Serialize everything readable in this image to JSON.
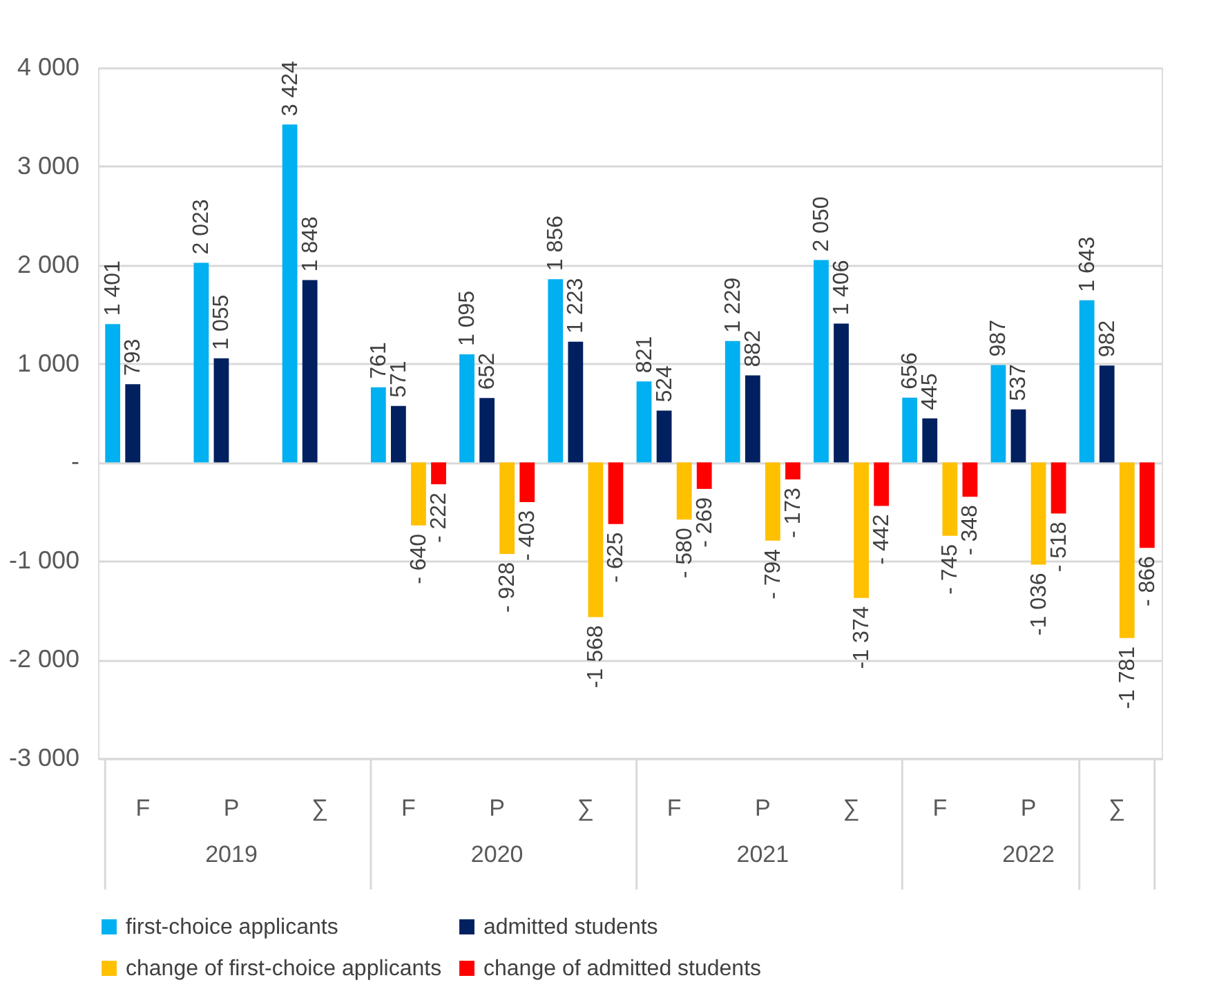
{
  "chart_data": {
    "type": "bar",
    "categories": [
      "F",
      "P",
      "∑",
      "F",
      "P",
      "∑",
      "F",
      "P",
      "∑",
      "F",
      "P",
      "∑"
    ],
    "annotations": [
      "2019",
      "2020",
      "2021",
      "2022"
    ],
    "series": [
      {
        "name": "first-choice applicants",
        "color": "#00b0f0",
        "values": [
          1401,
          2023,
          3424,
          761,
          1095,
          1856,
          821,
          1229,
          2050,
          656,
          987,
          1643
        ],
        "value_labels": [
          "1 401",
          "2 023",
          "3 424",
          "761",
          "1 095",
          "1 856",
          "821",
          "1 229",
          "2 050",
          "656",
          "987",
          "1 643"
        ]
      },
      {
        "name": "admitted students",
        "color": "#002060",
        "values": [
          793,
          1055,
          1848,
          571,
          652,
          1223,
          524,
          882,
          1406,
          445,
          537,
          982
        ],
        "value_labels": [
          "793",
          "1 055",
          "1 848",
          "571",
          "652",
          "1 223",
          "524",
          "882",
          "1 406",
          "445",
          "537",
          "982"
        ]
      },
      {
        "name": "change of first-choice applicants",
        "color": "#ffc000",
        "values": [
          null,
          null,
          null,
          -640,
          -928,
          -1568,
          -580,
          -794,
          -1374,
          -745,
          -1036,
          -1781
        ],
        "value_labels": [
          null,
          null,
          null,
          "- 640",
          "- 928",
          "-1 568",
          "- 580",
          "- 794",
          "-1 374",
          "- 745",
          "-1 036",
          "-1 781"
        ]
      },
      {
        "name": "change of admitted students",
        "color": "#ff0000",
        "values": [
          null,
          null,
          null,
          -222,
          -403,
          -625,
          -269,
          -173,
          -442,
          -348,
          -518,
          -866
        ],
        "value_labels": [
          null,
          null,
          null,
          "- 222",
          "- 403",
          "- 625",
          "- 269",
          "- 173",
          "- 442",
          "- 348",
          "- 518",
          "- 866"
        ]
      }
    ],
    "ylim": [
      -3000,
      4000
    ],
    "yticks": [
      {
        "value": -3000,
        "label": "-3 000"
      },
      {
        "value": -2000,
        "label": "-2 000"
      },
      {
        "value": -1000,
        "label": "-1 000"
      },
      {
        "value": 0,
        "label": "-"
      },
      {
        "value": 1000,
        "label": "1 000"
      },
      {
        "value": 2000,
        "label": "2 000"
      },
      {
        "value": 3000,
        "label": "3 000"
      },
      {
        "value": 4000,
        "label": "4 000"
      }
    ],
    "grid": "y",
    "legend": "bottom"
  }
}
